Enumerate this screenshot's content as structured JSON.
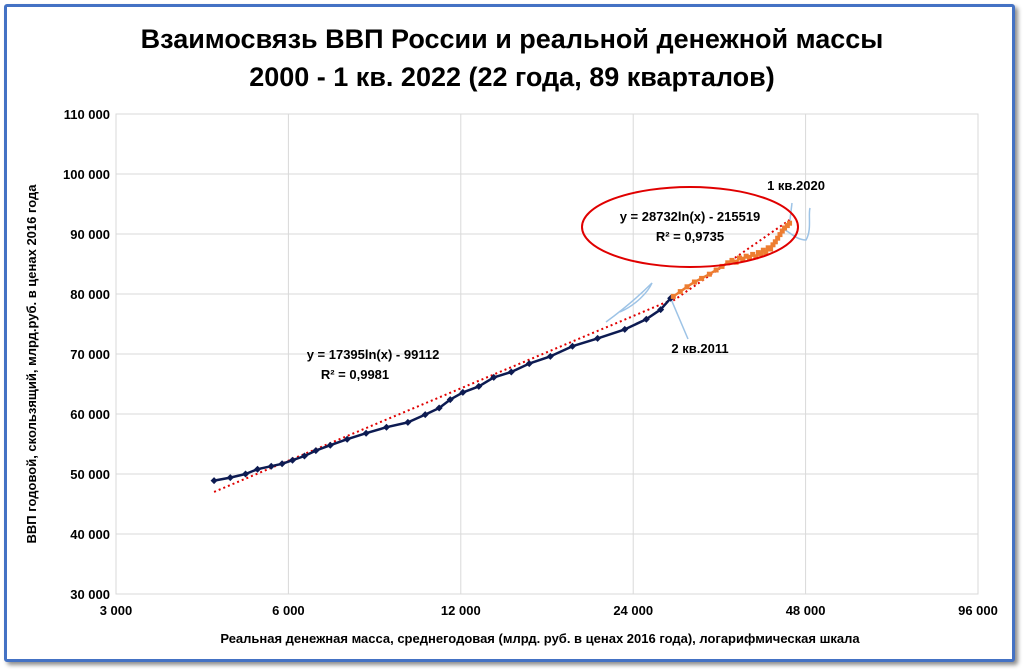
{
  "chart_data": {
    "type": "scatter",
    "title": "Взаимосвязь ВВП России и реальной денежной массы",
    "subtitle": "2000 - 1 кв. 2022 (22 года, 89 кварталов)",
    "xlabel": "Реальная денежная масса, среднегодовая (млрд. руб. в ценах 2016 года), логарифмическая шкала",
    "ylabel": "ВВП годовой, скользящий, млрд.руб. в ценах 2016 года",
    "xscale": "log",
    "xlim": [
      3000,
      96000
    ],
    "ylim": [
      30000,
      110000
    ],
    "x_ticks": [
      3000,
      6000,
      12000,
      24000,
      48000,
      96000
    ],
    "x_tick_labels": [
      "3 000",
      "6 000",
      "12 000",
      "24 000",
      "48 000",
      "96 000"
    ],
    "y_ticks": [
      30000,
      40000,
      50000,
      60000,
      70000,
      80000,
      90000,
      100000,
      110000
    ],
    "y_tick_labels": [
      "30 000",
      "40 000",
      "50 000",
      "60 000",
      "70 000",
      "80 000",
      "90 000",
      "100 000",
      "110 000"
    ],
    "grid": true,
    "colors": {
      "series1": "#0d1b52",
      "series2": "#ed7d31",
      "trend": "#e00000",
      "ellipse": "#e00000",
      "callout": "#9dc3e6",
      "frame": "#4472c4"
    },
    "series": [
      {
        "x": [
          4450,
          4750,
          5050,
          5300,
          5600,
          5850,
          6100,
          6400,
          6700,
          7100,
          7600,
          8200,
          8900,
          9700,
          10400,
          11000,
          11500,
          12100,
          12900,
          13700,
          14700,
          15800,
          17200,
          18800,
          20800,
          23200,
          25300,
          26800,
          27900
        ],
        "y": [
          48900,
          49400,
          50000,
          50800,
          51300,
          51700,
          52300,
          53000,
          53900,
          54800,
          55800,
          56800,
          57800,
          58600,
          59900,
          61000,
          62400,
          63600,
          64600,
          66100,
          67000,
          68400,
          69600,
          71300,
          72600,
          74100,
          75800,
          77400,
          79300
        ]
      },
      {
        "x": [
          28200,
          29000,
          29800,
          30700,
          31600,
          32600,
          33500,
          34300,
          35100,
          35700,
          36300,
          36800,
          37300,
          37800,
          38300,
          38800,
          39300,
          39700,
          40100,
          40500,
          40900,
          41300,
          41700,
          42100,
          42500,
          42900,
          43300,
          43700,
          44100,
          44600,
          45000
        ],
        "y": [
          79600,
          80400,
          81200,
          82000,
          82600,
          83300,
          84000,
          84600,
          85200,
          85600,
          85300,
          86000,
          85800,
          86300,
          86100,
          86600,
          86200,
          86900,
          86700,
          87300,
          86900,
          87700,
          87500,
          88200,
          88700,
          89300,
          89900,
          90500,
          91000,
          91400,
          91800
        ]
      }
    ],
    "trendlines": [
      {
        "equation": "y = 17395ln(x) - 99112",
        "r2": "R² = 0,9981",
        "x_range": [
          4450,
          27900
        ]
      },
      {
        "equation": "y = 28732ln(x) - 215519",
        "r2": "R² = 0,9735",
        "x_range": [
          28200,
          45000
        ]
      }
    ],
    "annotations": [
      {
        "text": "1 кв.2020"
      },
      {
        "text": "2 кв.2011"
      }
    ]
  }
}
